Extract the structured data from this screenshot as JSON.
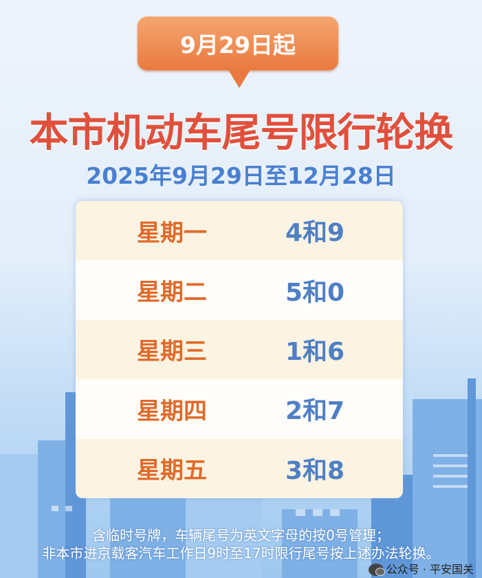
{
  "badge": {
    "text": "9月29日起"
  },
  "title": "本市机动车尾号限行轮换",
  "date_range": "2025年9月29日至12月28日",
  "schedule": [
    {
      "day": "星期一",
      "numbers": "4和9"
    },
    {
      "day": "星期二",
      "numbers": "5和0"
    },
    {
      "day": "星期三",
      "numbers": "1和6"
    },
    {
      "day": "星期四",
      "numbers": "2和7"
    },
    {
      "day": "星期五",
      "numbers": "3和8"
    }
  ],
  "notes": [
    "含临时号牌，车辆尾号为英文字母的按0号管理；",
    "非本市进京载客汽车工作日9时至17时限行尾号按上述办法轮换。"
  ],
  "watermark": {
    "icon": "wechat-icon",
    "text": "公众号 · 平安国关"
  },
  "colors": {
    "title": "#e0503c",
    "badge": "#e97a3f",
    "date": "#4a7fcf",
    "day": "#e06a2a",
    "numbers": "#4f7fc4"
  }
}
